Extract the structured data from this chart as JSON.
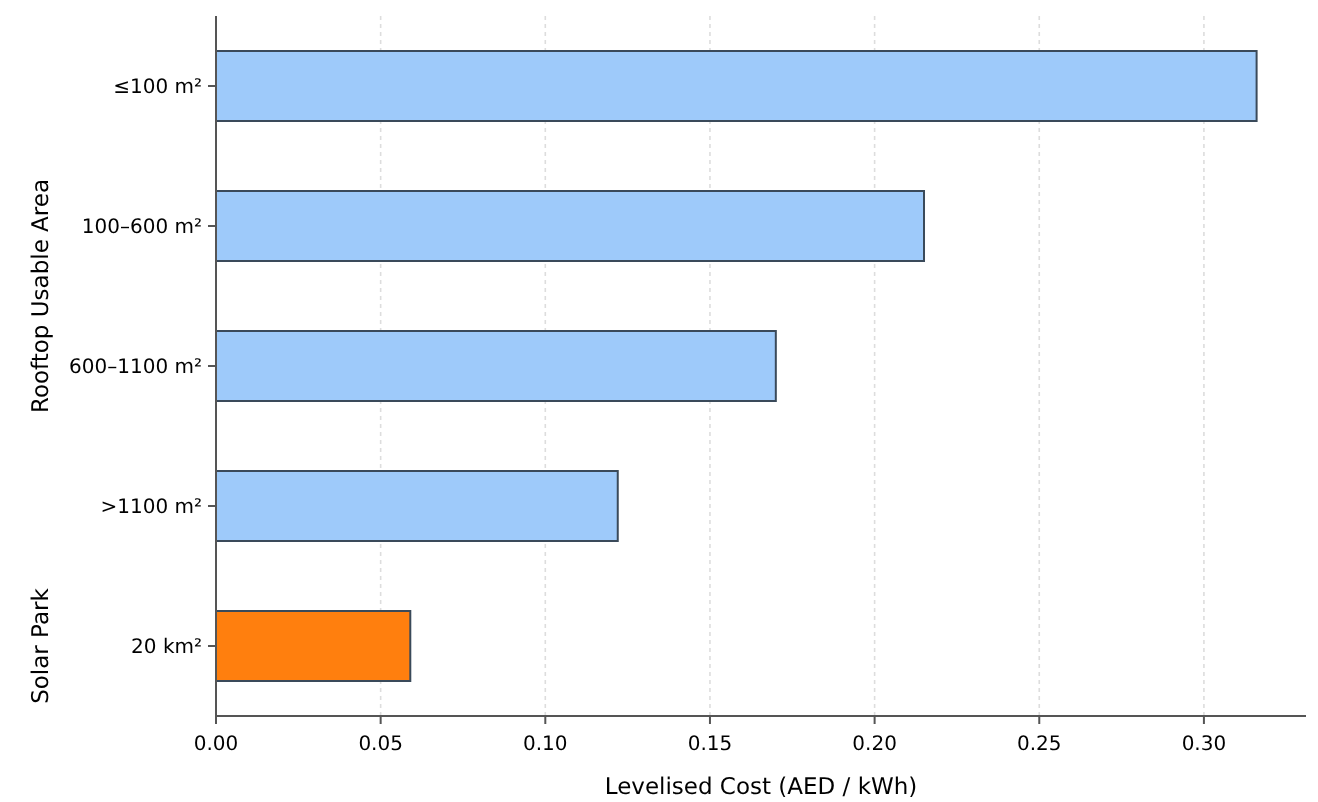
{
  "chart_data": {
    "type": "bar",
    "orientation": "horizontal",
    "xlabel": "Levelised Cost (AED / kWh)",
    "ylabel": "Rooftop Usable Area",
    "annotations": [
      "Solar Park"
    ],
    "categories": [
      "≤100 m²",
      "100–600 m²",
      "600–1100 m²",
      ">1100 m²",
      "20 km²"
    ],
    "values": [
      0.316,
      0.215,
      0.17,
      0.122,
      0.059
    ],
    "colors": [
      "#9ecafa",
      "#9ecafa",
      "#9ecafa",
      "#9ecafa",
      "#ff7f0e"
    ],
    "xlim": [
      0,
      0.331
    ],
    "xticks": [
      {
        "value": 0,
        "label": "0.00"
      },
      {
        "value": 0.05,
        "label": "0.05"
      },
      {
        "value": 0.1,
        "label": "0.10"
      },
      {
        "value": 0.15,
        "label": "0.15"
      },
      {
        "value": 0.2,
        "label": "0.20"
      },
      {
        "value": 0.25,
        "label": "0.25"
      },
      {
        "value": 0.3,
        "label": "0.30"
      }
    ],
    "grid": "x"
  }
}
